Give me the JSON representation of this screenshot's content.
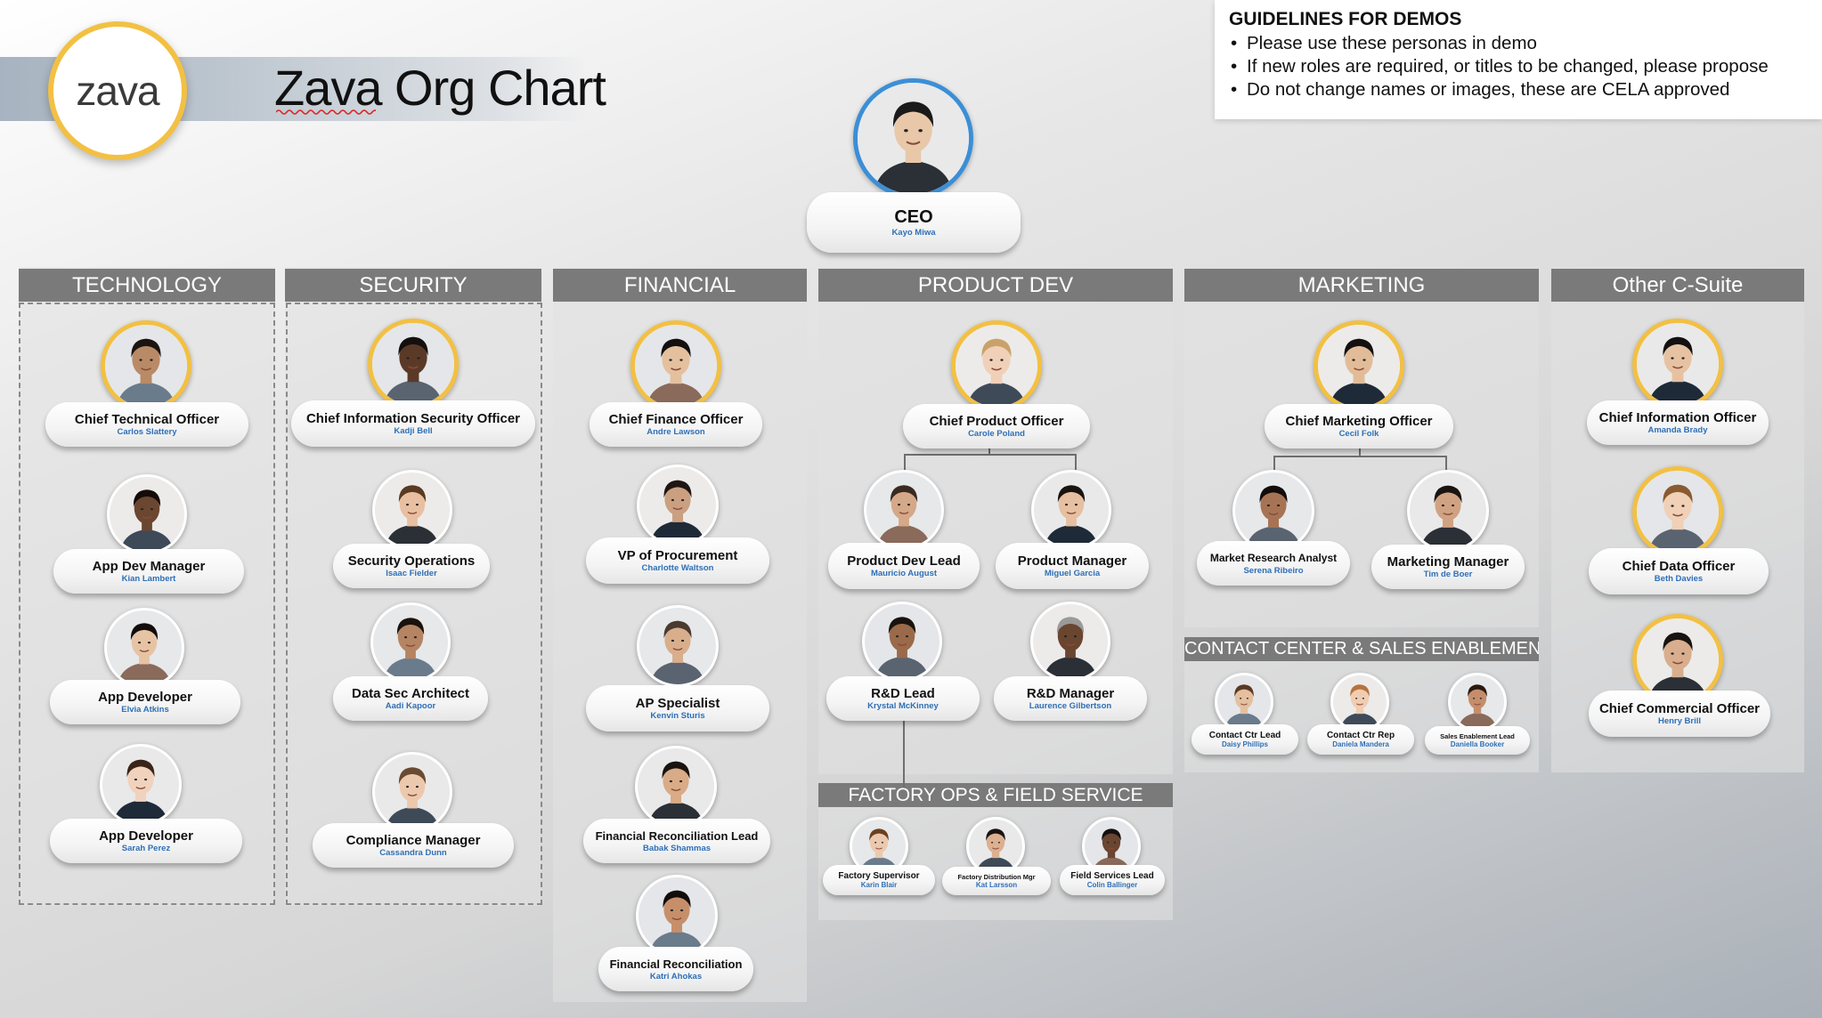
{
  "header": {
    "logo_text": "zava",
    "title": "Zava Org Chart"
  },
  "guidelines": {
    "heading": "GUIDELINES FOR DEMOS",
    "items": [
      "Please use these personas in demo",
      "If new roles are required, or titles to be changed, please propose",
      "Do not change names or images, these are CELA approved"
    ]
  },
  "ceo": {
    "role": "CEO",
    "name": "Kayo Miwa"
  },
  "sections": {
    "technology": {
      "title": "TECHNOLOGY",
      "people": [
        {
          "role": "Chief Technical Officer",
          "name": "Carlos Slattery"
        },
        {
          "role": "App Dev Manager",
          "name": "Kian Lambert"
        },
        {
          "role": "App Developer",
          "name": "Elvia Atkins"
        },
        {
          "role": "App Developer",
          "name": "Sarah Perez"
        }
      ]
    },
    "security": {
      "title": "SECURITY",
      "people": [
        {
          "role": "Chief Information Security Officer",
          "name": "Kadji Bell"
        },
        {
          "role": "Security Operations",
          "name": "Isaac Fielder"
        },
        {
          "role": "Data Sec Architect",
          "name": "Aadi Kapoor"
        },
        {
          "role": "Compliance Manager",
          "name": "Cassandra Dunn"
        }
      ]
    },
    "financial": {
      "title": "FINANCIAL",
      "people": [
        {
          "role": "Chief Finance Officer",
          "name": "Andre Lawson"
        },
        {
          "role": "VP of Procurement",
          "name": "Charlotte Waltson"
        },
        {
          "role": "AP Specialist",
          "name": "Kenvin Sturis"
        },
        {
          "role": "Financial Reconciliation Lead",
          "name": "Babak Shammas"
        },
        {
          "role": "Financial Reconciliation",
          "name": "Katri Ahokas"
        }
      ]
    },
    "product_dev": {
      "title": "PRODUCT DEV",
      "people": [
        {
          "role": "Chief Product Officer",
          "name": "Carole Poland"
        },
        {
          "role": "Product Dev Lead",
          "name": "Mauricio August"
        },
        {
          "role": "Product Manager",
          "name": "Miguel Garcia"
        },
        {
          "role": "R&D Lead",
          "name": "Krystal McKinney"
        },
        {
          "role": "R&D Manager",
          "name": "Laurence Gilbertson"
        }
      ]
    },
    "factory_ops": {
      "title": "FACTORY OPS & FIELD SERVICE",
      "people": [
        {
          "role": "Factory Supervisor",
          "name": "Karin Blair"
        },
        {
          "role": "Factory Distribution Mgr",
          "name": "Kat Larsson"
        },
        {
          "role": "Field Services Lead",
          "name": "Colin Ballinger"
        }
      ]
    },
    "marketing": {
      "title": "MARKETING",
      "people": [
        {
          "role": "Chief Marketing Officer",
          "name": "Cecil Folk"
        },
        {
          "role": "Market Research Analyst",
          "name": "Serena Ribeiro"
        },
        {
          "role": "Marketing Manager",
          "name": "Tim de Boer"
        }
      ]
    },
    "contact_center": {
      "title": "CONTACT CENTER & SALES ENABLEMENT",
      "people": [
        {
          "role": "Contact Ctr Lead",
          "name": "Daisy Phillips"
        },
        {
          "role": "Contact Ctr Rep",
          "name": "Daniela Mandera"
        },
        {
          "role": "Sales Enablement Lead",
          "name": "Daniella Booker"
        }
      ]
    },
    "other_csuite": {
      "title": "Other C-Suite",
      "people": [
        {
          "role": "Chief Information Officer",
          "name": "Amanda Brady"
        },
        {
          "role": "Chief Data Officer",
          "name": "Beth Davies"
        },
        {
          "role": "Chief Commercial Officer",
          "name": "Henry Brill"
        }
      ]
    }
  },
  "colors": {
    "accent_gold": "#f2c043",
    "ceo_ring": "#3b8fd6",
    "name_blue": "#2e6fb7",
    "section_header": "#7a7a7a"
  }
}
